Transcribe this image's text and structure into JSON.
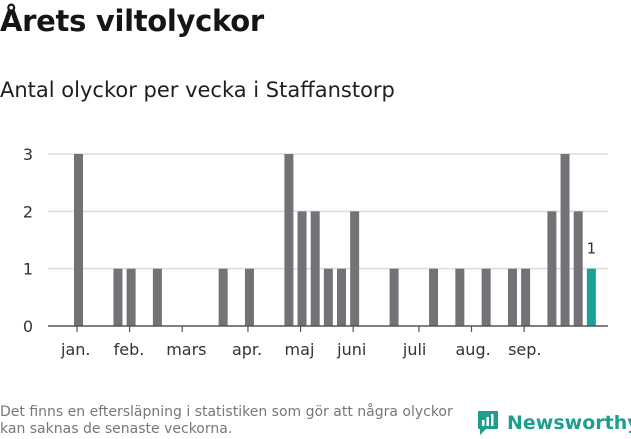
{
  "title": "Årets viltolyckor",
  "subtitle": "Antal olyckor per vecka i Staffanstorp",
  "footnote": "Det finns en eftersläpning i statistiken som gör att några olyckor kan saknas de senaste veckorna.",
  "brand": {
    "name": "Newsworthy",
    "icon": "newsworthy-logo-icon",
    "color": "#1e9e8e"
  },
  "chart_data": {
    "type": "bar",
    "title": "",
    "xlabel": "",
    "ylabel": "",
    "ylim": [
      0,
      3
    ],
    "yticks": [
      0,
      1,
      2,
      3
    ],
    "grid": true,
    "colors": {
      "bar": "#737276",
      "highlight": "#1aa198"
    },
    "values": [
      3,
      0,
      0,
      1,
      1,
      0,
      1,
      0,
      0,
      0,
      0,
      1,
      0,
      1,
      0,
      0,
      3,
      2,
      2,
      1,
      1,
      2,
      0,
      0,
      1,
      0,
      0,
      1,
      0,
      1,
      0,
      1,
      0,
      1,
      1,
      0,
      2,
      3,
      2,
      1
    ],
    "highlight_index": 39,
    "highlight_label": "1",
    "month_labels": [
      {
        "label": "jan.",
        "index": 0
      },
      {
        "label": "feb.",
        "index": 4
      },
      {
        "label": "mars",
        "index": 8
      },
      {
        "label": "apr.",
        "index": 13
      },
      {
        "label": "maj",
        "index": 17
      },
      {
        "label": "juni",
        "index": 21
      },
      {
        "label": "juli",
        "index": 26
      },
      {
        "label": "aug.",
        "index": 30
      },
      {
        "label": "sep.",
        "index": 34
      }
    ]
  }
}
